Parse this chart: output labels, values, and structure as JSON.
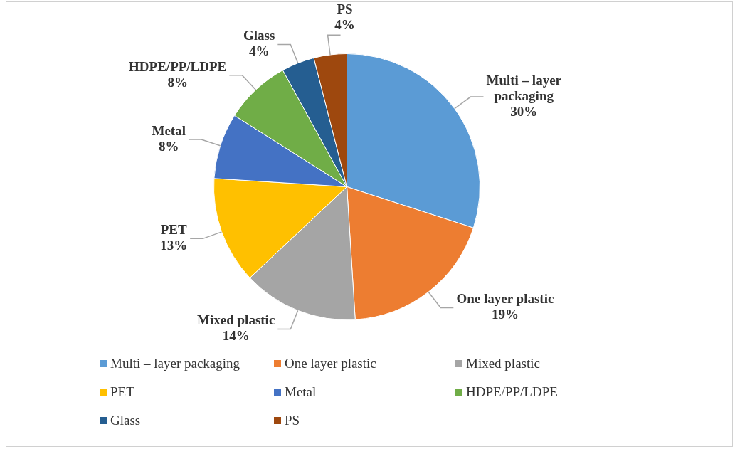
{
  "chart_data": {
    "type": "pie",
    "categories": [
      "Multi – layer packaging",
      "One layer plastic",
      "Mixed plastic",
      "PET",
      "Metal",
      "HDPE/PP/LDPE",
      "Glass",
      "PS"
    ],
    "values": [
      30,
      19,
      14,
      13,
      8,
      8,
      4,
      4
    ],
    "value_labels": [
      "30%",
      "19%",
      "14%",
      "13%",
      "8%",
      "8%",
      "4%",
      "4%"
    ],
    "colors": [
      "#5b9bd5",
      "#ed7d31",
      "#a5a5a5",
      "#ffc000",
      "#4472c4",
      "#70ad47",
      "#255e91",
      "#9e480e"
    ],
    "legend": "bottom"
  }
}
